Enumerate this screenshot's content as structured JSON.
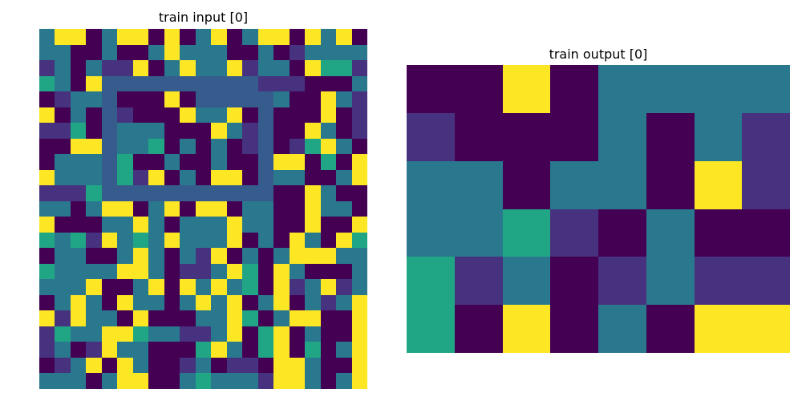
{
  "palette": {
    "0": "#440154",
    "1": "#46327e",
    "2": "#365c8d",
    "3": "#2a788e",
    "4": "#21a685",
    "5": "#fde725"
  },
  "panels": {
    "left": {
      "title": "train input [0]",
      "rows": [
        [
          3,
          5,
          5,
          0,
          3,
          5,
          5,
          0,
          5,
          0,
          3,
          5,
          0,
          3,
          5,
          5,
          0,
          5,
          3,
          5,
          0
        ],
        [
          3,
          3,
          0,
          0,
          3,
          0,
          0,
          3,
          5,
          3,
          3,
          3,
          0,
          0,
          3,
          0,
          1,
          3,
          3,
          3,
          3
        ],
        [
          1,
          3,
          0,
          3,
          1,
          1,
          5,
          0,
          3,
          5,
          3,
          3,
          5,
          1,
          3,
          3,
          0,
          5,
          4,
          4,
          1
        ],
        [
          4,
          3,
          0,
          5,
          2,
          2,
          2,
          2,
          2,
          2,
          2,
          2,
          2,
          2,
          1,
          1,
          1,
          0,
          0,
          0,
          3
        ],
        [
          0,
          1,
          3,
          3,
          2,
          0,
          0,
          0,
          5,
          0,
          2,
          2,
          2,
          2,
          2,
          3,
          0,
          0,
          5,
          3,
          1
        ],
        [
          5,
          0,
          3,
          0,
          2,
          1,
          0,
          0,
          0,
          5,
          3,
          3,
          5,
          0,
          2,
          0,
          0,
          0,
          5,
          0,
          1
        ],
        [
          1,
          1,
          4,
          0,
          2,
          3,
          3,
          3,
          0,
          0,
          0,
          5,
          3,
          1,
          2,
          0,
          0,
          5,
          3,
          0,
          1
        ],
        [
          0,
          0,
          5,
          5,
          2,
          3,
          3,
          4,
          0,
          3,
          0,
          3,
          0,
          1,
          2,
          0,
          1,
          4,
          5,
          3,
          0
        ],
        [
          0,
          3,
          3,
          3,
          2,
          4,
          0,
          0,
          3,
          0,
          0,
          3,
          0,
          0,
          2,
          5,
          5,
          0,
          4,
          0,
          5
        ],
        [
          5,
          3,
          3,
          3,
          2,
          4,
          1,
          5,
          0,
          3,
          0,
          5,
          5,
          0,
          2,
          3,
          3,
          0,
          0,
          3,
          5
        ],
        [
          1,
          1,
          1,
          4,
          2,
          2,
          2,
          2,
          2,
          2,
          2,
          2,
          2,
          2,
          2,
          0,
          0,
          5,
          3,
          0,
          0
        ],
        [
          3,
          3,
          0,
          3,
          5,
          5,
          0,
          3,
          5,
          0,
          5,
          5,
          0,
          3,
          3,
          0,
          0,
          5,
          3,
          3,
          0
        ],
        [
          5,
          0,
          0,
          0,
          3,
          3,
          5,
          3,
          0,
          3,
          3,
          3,
          5,
          3,
          3,
          0,
          0,
          5,
          0,
          0,
          5
        ],
        [
          4,
          3,
          4,
          1,
          5,
          3,
          4,
          3,
          5,
          3,
          3,
          3,
          5,
          0,
          3,
          0,
          5,
          3,
          0,
          5,
          4
        ],
        [
          0,
          3,
          3,
          0,
          0,
          3,
          5,
          3,
          0,
          3,
          1,
          5,
          0,
          3,
          0,
          3,
          5,
          5,
          5,
          3,
          3
        ],
        [
          4,
          3,
          3,
          3,
          3,
          5,
          5,
          3,
          0,
          1,
          1,
          3,
          5,
          4,
          0,
          5,
          3,
          0,
          0,
          0,
          3
        ],
        [
          3,
          3,
          3,
          5,
          0,
          0,
          3,
          5,
          0,
          5,
          3,
          5,
          3,
          4,
          0,
          5,
          1,
          3,
          5,
          1,
          3
        ],
        [
          0,
          3,
          5,
          3,
          0,
          5,
          3,
          3,
          0,
          3,
          5,
          3,
          5,
          0,
          3,
          5,
          0,
          3,
          1,
          3,
          5
        ],
        [
          5,
          1,
          5,
          3,
          3,
          0,
          5,
          0,
          0,
          0,
          3,
          3,
          5,
          4,
          0,
          3,
          5,
          5,
          0,
          0,
          5
        ],
        [
          1,
          4,
          3,
          3,
          5,
          5,
          4,
          3,
          3,
          1,
          1,
          3,
          5,
          0,
          4,
          5,
          0,
          3,
          0,
          0,
          5
        ],
        [
          1,
          3,
          0,
          1,
          5,
          3,
          3,
          0,
          0,
          0,
          4,
          5,
          3,
          0,
          4,
          5,
          0,
          4,
          0,
          3,
          5
        ],
        [
          0,
          1,
          3,
          5,
          0,
          5,
          3,
          0,
          0,
          1,
          3,
          0,
          1,
          1,
          0,
          5,
          5,
          3,
          0,
          0,
          5
        ],
        [
          3,
          3,
          3,
          0,
          3,
          5,
          5,
          0,
          0,
          3,
          4,
          3,
          3,
          3,
          1,
          5,
          5,
          3,
          0,
          3,
          5
        ]
      ]
    },
    "right": {
      "title": "train output [0]",
      "rows": [
        [
          0,
          0,
          5,
          0,
          3,
          3,
          3,
          3
        ],
        [
          1,
          0,
          0,
          0,
          3,
          0,
          3,
          1
        ],
        [
          3,
          3,
          0,
          3,
          3,
          0,
          5,
          1
        ],
        [
          3,
          3,
          4,
          1,
          0,
          3,
          0,
          0
        ],
        [
          4,
          1,
          3,
          0,
          1,
          3,
          1,
          1
        ],
        [
          4,
          0,
          5,
          0,
          3,
          0,
          5,
          5
        ]
      ]
    }
  }
}
